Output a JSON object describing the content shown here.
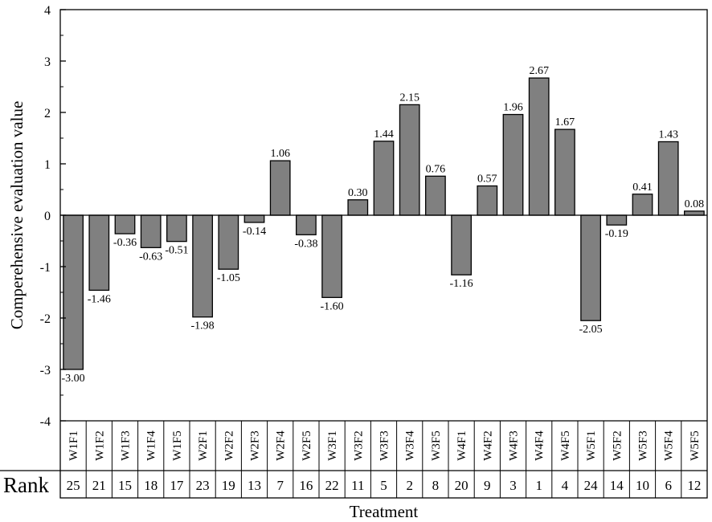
{
  "chart_data": {
    "type": "bar",
    "ylabel": "Comperehensive evaluation value",
    "xlabel": "Treatment",
    "rank_label": "Rank",
    "ylim": [
      -4,
      4
    ],
    "y_ticks": [
      4,
      3,
      2,
      1,
      0,
      -1,
      -2,
      -3,
      -4
    ],
    "bar_color": "#808080",
    "categories": [
      "W1F1",
      "W1F2",
      "W1F3",
      "W1F4",
      "W1F5",
      "W2F1",
      "W2F2",
      "W2F3",
      "W2F4",
      "W2F5",
      "W3F1",
      "W3F2",
      "W3F3",
      "W3F4",
      "W3F5",
      "W4F1",
      "W4F2",
      "W4F3",
      "W4F4",
      "W4F5",
      "W5F1",
      "W5F2",
      "W5F3",
      "W5F4",
      "W5F5"
    ],
    "values": [
      -3.0,
      -1.46,
      -0.36,
      -0.63,
      -0.51,
      -1.98,
      -1.05,
      -0.14,
      1.06,
      -0.38,
      -1.6,
      0.3,
      1.44,
      2.15,
      0.76,
      -1.16,
      0.57,
      1.96,
      2.67,
      1.67,
      -2.05,
      -0.19,
      0.41,
      1.43,
      0.08
    ],
    "value_labels": [
      "-3.00",
      "-1.46",
      "-0.36",
      "-0.63",
      "-0.51",
      "-1.98",
      "-1.05",
      "-0.14",
      "1.06",
      "-0.38",
      "-1.60",
      "0.30",
      "1.44",
      "2.15",
      "0.76",
      "-1.16",
      "0.57",
      "1.96",
      "2.67",
      "1.67",
      "-2.05",
      "-0.19",
      "0.41",
      "1.43",
      "0.08"
    ],
    "ranks": [
      "25",
      "21",
      "15",
      "18",
      "17",
      "23",
      "19",
      "13",
      "7",
      "16",
      "22",
      "11",
      "5",
      "2",
      "8",
      "20",
      "9",
      "3",
      "1",
      "4",
      "24",
      "14",
      "10",
      "6",
      "12"
    ],
    "grid": false
  }
}
